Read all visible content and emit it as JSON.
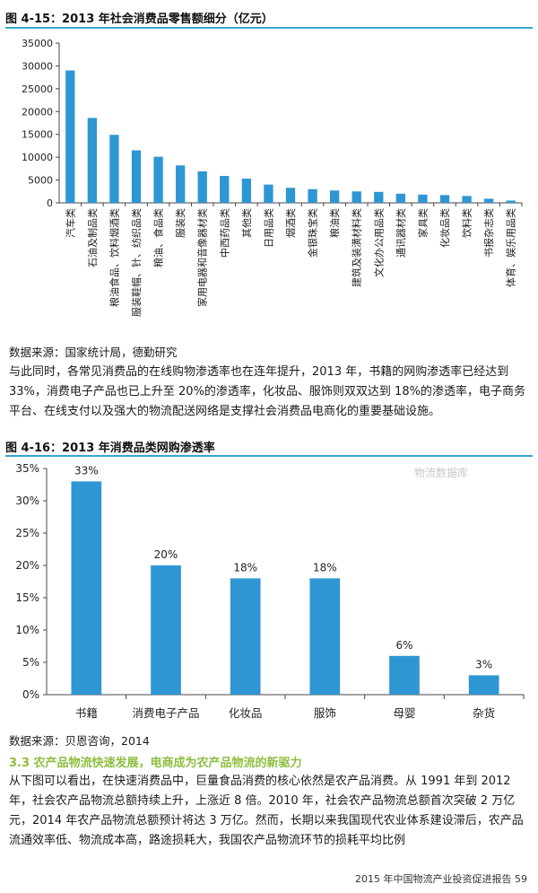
{
  "figure1": {
    "title": "图 4-15：2013 年社会消费品零售额细分（亿元）",
    "source": "数据来源：国家统计局，德勤研究"
  },
  "figure2": {
    "title": "图 4-16：2013 年消费品类网购渗透率",
    "source": "数据来源：贝恩咨询，2014"
  },
  "paragraph1": "与此同时，各常见消费品的在线购物渗透率也在连年提升，2013 年，书籍的网购渗透率已经达到 33%，消费电子产品也已上升至 20%的渗透率，化妆品、服饰则双双达到 18%的渗透率，电子商务平台、在线支付以及强大的物流配送网络是支撑社会消费品电商化的重要基础设施。",
  "section_heading": "3.3 农产品物流快速发展，电商成为农产品物流的新驱力",
  "paragraph2": "从下图可以看出，在快速消费品中，巨量食品消费的核心依然是农产品消费。从 1991 年到 2012 年，社会农产品物流总额持续上升，上涨近 8 倍。2010 年，社会农产品物流总额首次突破 2 万亿元，2014 年农产品物流总额预计将达 3 万亿。然而，长期以来我国现代农业体系建设滞后，农产品流通效率低、物流成本高，路途损耗大，我国农产品物流环节的损耗平均比例",
  "footer": "2015 年中国物流产业投资促进报告   59",
  "watermark": "物流数据库",
  "colors": {
    "bar": "#2e96d3",
    "rule": "#35a7c9",
    "section": "#8cbf3f"
  },
  "chart_data": [
    {
      "type": "bar",
      "title": "图 4-15：2013 年社会消费品零售额细分（亿元）",
      "categories": [
        "汽车类",
        "石油及制品类",
        "粮油食品、饮料烟酒类",
        "服装鞋帽、针、纺织品类",
        "粮油、食品类",
        "服装类",
        "家用电器和音像器材类",
        "中西药品类",
        "其他类",
        "日用品类",
        "烟酒类",
        "金银珠宝类",
        "粮油类",
        "建筑及装潢材料类",
        "文化办公用品类",
        "通讯器材类",
        "家具类",
        "化妆品类",
        "饮料类",
        "书报杂志类",
        "体育、娱乐用品类"
      ],
      "values": [
        29000,
        18600,
        14900,
        11500,
        10100,
        8200,
        6900,
        5900,
        5300,
        4000,
        3300,
        3000,
        2700,
        2500,
        2400,
        2000,
        1800,
        1700,
        1500,
        900,
        500
      ],
      "ylim": [
        0,
        35000
      ],
      "yticks": [
        0,
        5000,
        10000,
        15000,
        20000,
        25000,
        30000,
        35000
      ],
      "grid": false
    },
    {
      "type": "bar",
      "title": "图 4-16：2013 年消费品类网购渗透率",
      "categories": [
        "书籍",
        "消费电子产品",
        "化妆品",
        "服饰",
        "母婴",
        "杂货"
      ],
      "values": [
        33,
        20,
        18,
        18,
        6,
        3
      ],
      "data_labels": [
        "33%",
        "20%",
        "18%",
        "18%",
        "6%",
        "3%"
      ],
      "ylim": [
        0,
        35
      ],
      "yticks": [
        "0%",
        "5%",
        "10%",
        "15%",
        "20%",
        "25%",
        "30%",
        "35%"
      ],
      "grid": false
    }
  ]
}
